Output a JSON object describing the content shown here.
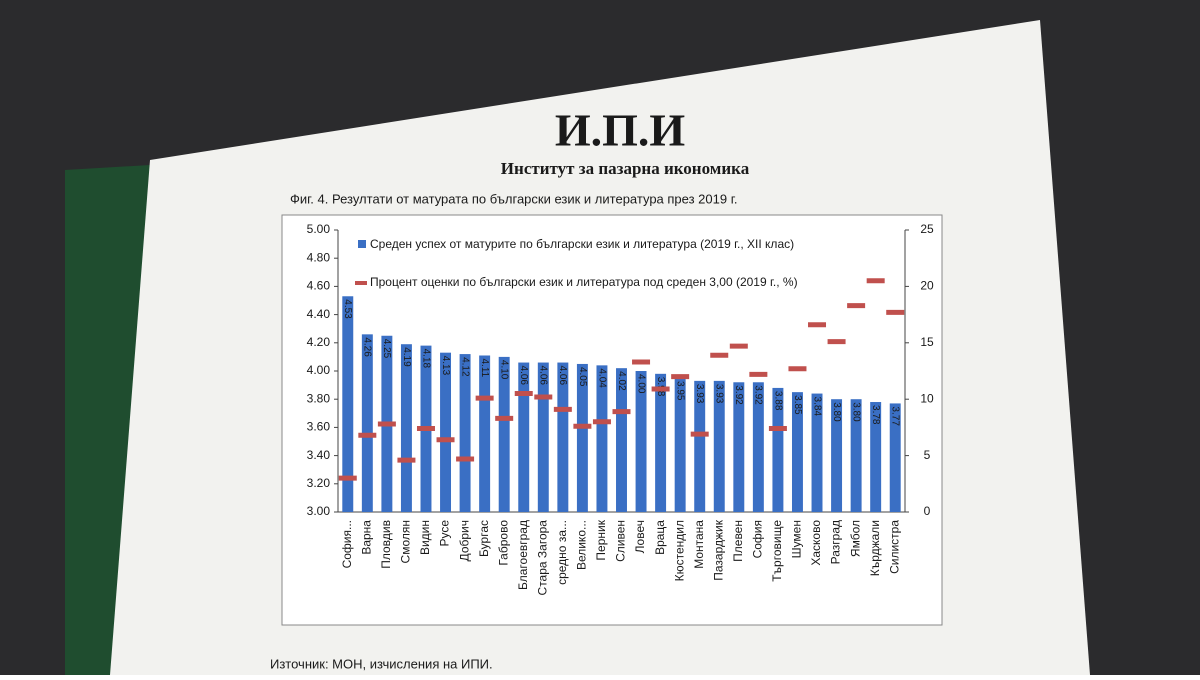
{
  "header": {
    "logo": "И.П.И",
    "subtitle": "Институт за пазарна икономика"
  },
  "source": "Източник: МОН, изчисления на ИПИ.",
  "chart_data": {
    "type": "bar",
    "title": "Фиг.  4. Резултати от матурата по български език и литература през 2019 г.",
    "categories": [
      "София...",
      "Варна",
      "Пловдив",
      "Смолян",
      "Видин",
      "Русе",
      "Добрич",
      "Бургас",
      "Габрово",
      "Благоевград",
      "Стара Загора",
      "средно за...",
      "Велико...",
      "Перник",
      "Сливен",
      "Ловеч",
      "Враца",
      "Кюстендил",
      "Монтана",
      "Пазарджик",
      "Плевен",
      "София",
      "Търговище",
      "Шумен",
      "Хасково",
      "Разград",
      "Ямбол",
      "Кърджали",
      "Силистра"
    ],
    "series": [
      {
        "name": "Среден успех от матурите по български език и литература (2019 г., XII клас)",
        "color": "#3a6fc4",
        "values": [
          4.53,
          4.26,
          4.25,
          4.19,
          4.18,
          4.13,
          4.12,
          4.11,
          4.1,
          4.06,
          4.06,
          4.06,
          4.05,
          4.04,
          4.02,
          4.0,
          3.98,
          3.95,
          3.93,
          3.93,
          3.92,
          3.92,
          3.88,
          3.85,
          3.84,
          3.8,
          3.8,
          3.78,
          3.77
        ],
        "value_labels": [
          "4.53",
          "4.26",
          "4.25",
          "4.19",
          "4.18",
          "4.13",
          "4.12",
          "4.11",
          "4.10",
          "4.06",
          "4.06",
          "4.06",
          "4.05",
          "4.04",
          "4.02",
          "4.00",
          "3.98",
          "3.95",
          "3.93",
          "3.93",
          "3.92",
          "3.92",
          "3.88",
          "3.85",
          "3.84",
          "3.80",
          "3.80",
          "3.78",
          "3.77"
        ]
      },
      {
        "name": "Процент оценки по български език и литература под среден 3,00 (2019 г., %)",
        "color": "#c0504d",
        "axis": "y2",
        "values": [
          3.0,
          6.8,
          7.8,
          4.6,
          7.4,
          6.4,
          4.7,
          10.1,
          8.3,
          10.5,
          10.2,
          9.1,
          7.6,
          8.0,
          8.9,
          13.3,
          10.9,
          12.0,
          6.9,
          13.9,
          14.7,
          12.2,
          7.4,
          12.7,
          16.6,
          15.1,
          18.3,
          20.5,
          17.7
        ]
      }
    ],
    "ylim": [
      3.0,
      5.0
    ],
    "yticks": [
      {
        "value": 3.0,
        "label": "3.00"
      },
      {
        "value": 3.2,
        "label": "3.20"
      },
      {
        "value": 3.4,
        "label": "3.40"
      },
      {
        "value": 3.6,
        "label": "3.60"
      },
      {
        "value": 3.8,
        "label": "3.80"
      },
      {
        "value": 4.0,
        "label": "4.00"
      },
      {
        "value": 4.2,
        "label": "4.20"
      },
      {
        "value": 4.4,
        "label": "4.40"
      },
      {
        "value": 4.6,
        "label": "4.60"
      },
      {
        "value": 4.8,
        "label": "4.80"
      },
      {
        "value": 5.0,
        "label": "5.00"
      }
    ],
    "y2lim": [
      0,
      25
    ],
    "y2ticks": [
      0,
      5,
      10,
      15,
      20,
      25
    ]
  }
}
